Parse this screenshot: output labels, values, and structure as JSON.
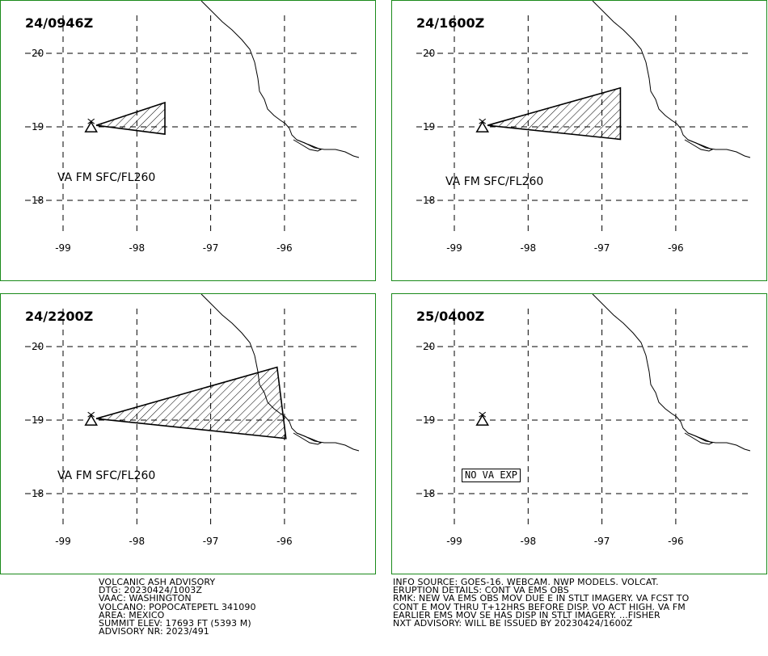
{
  "panels": [
    {
      "time": "24/0946Z",
      "va_label": "VA FM SFC/FL260",
      "polygon": [
        [
          -98.55,
          19.02
        ],
        [
          -97.62,
          19.33
        ],
        [
          -97.62,
          18.9
        ]
      ],
      "no_va": ""
    },
    {
      "time": "24/1600Z",
      "va_label": "VA FM SFC/FL260",
      "polygon": [
        [
          -98.55,
          19.02
        ],
        [
          -96.75,
          19.53
        ],
        [
          -96.75,
          18.83
        ]
      ],
      "no_va": ""
    },
    {
      "time": "24/2200Z",
      "va_label": "VA FM SFC/FL260",
      "polygon": [
        [
          -98.55,
          19.02
        ],
        [
          -96.1,
          19.72
        ],
        [
          -95.98,
          18.75
        ]
      ],
      "no_va": ""
    },
    {
      "time": "25/0400Z",
      "va_label": "",
      "polygon": [],
      "no_va": "NO VA EXP"
    }
  ],
  "axes": {
    "lat_labels": [
      "20",
      "19",
      "18"
    ],
    "lon_labels": [
      "-99",
      "-98",
      "-97",
      "-96"
    ],
    "lats": [
      20,
      19,
      18
    ],
    "lons": [
      -99,
      -98,
      -97,
      -96
    ]
  },
  "volcano": {
    "lon": -98.62,
    "lat": 19.02
  },
  "advisory": {
    "left_lines": [
      "VOLCANIC ASH ADVISORY",
      "DTG: 20230424/1003Z",
      "VAAC: WASHINGTON",
      "VOLCANO: POPOCATEPETL 341090",
      "AREA: MEXICO",
      "SUMMIT ELEV: 17693 FT (5393 M)",
      "ADVISORY NR: 2023/491"
    ],
    "right_lines": [
      "INFO SOURCE: GOES-16. WEBCAM. NWP MODELS. VOLCAT.",
      "ERUPTION DETAILS: CONT VA EMS OBS",
      "RMK: NEW VA EMS OBS MOV DUE E IN STLT IMAGERY. VA FCST TO",
      "CONT E MOV THRU T+12HRS BEFORE DISP. VO ACT HIGH. VA FM",
      "EARLIER EMS MOV SE HAS DISP IN STLT IMAGERY. ...FISHER",
      "NXT ADVISORY: WILL BE ISSUED BY 20230424/1600Z"
    ]
  },
  "colors": {
    "panel_border": "#1a8a1a",
    "ink": "#000000"
  }
}
